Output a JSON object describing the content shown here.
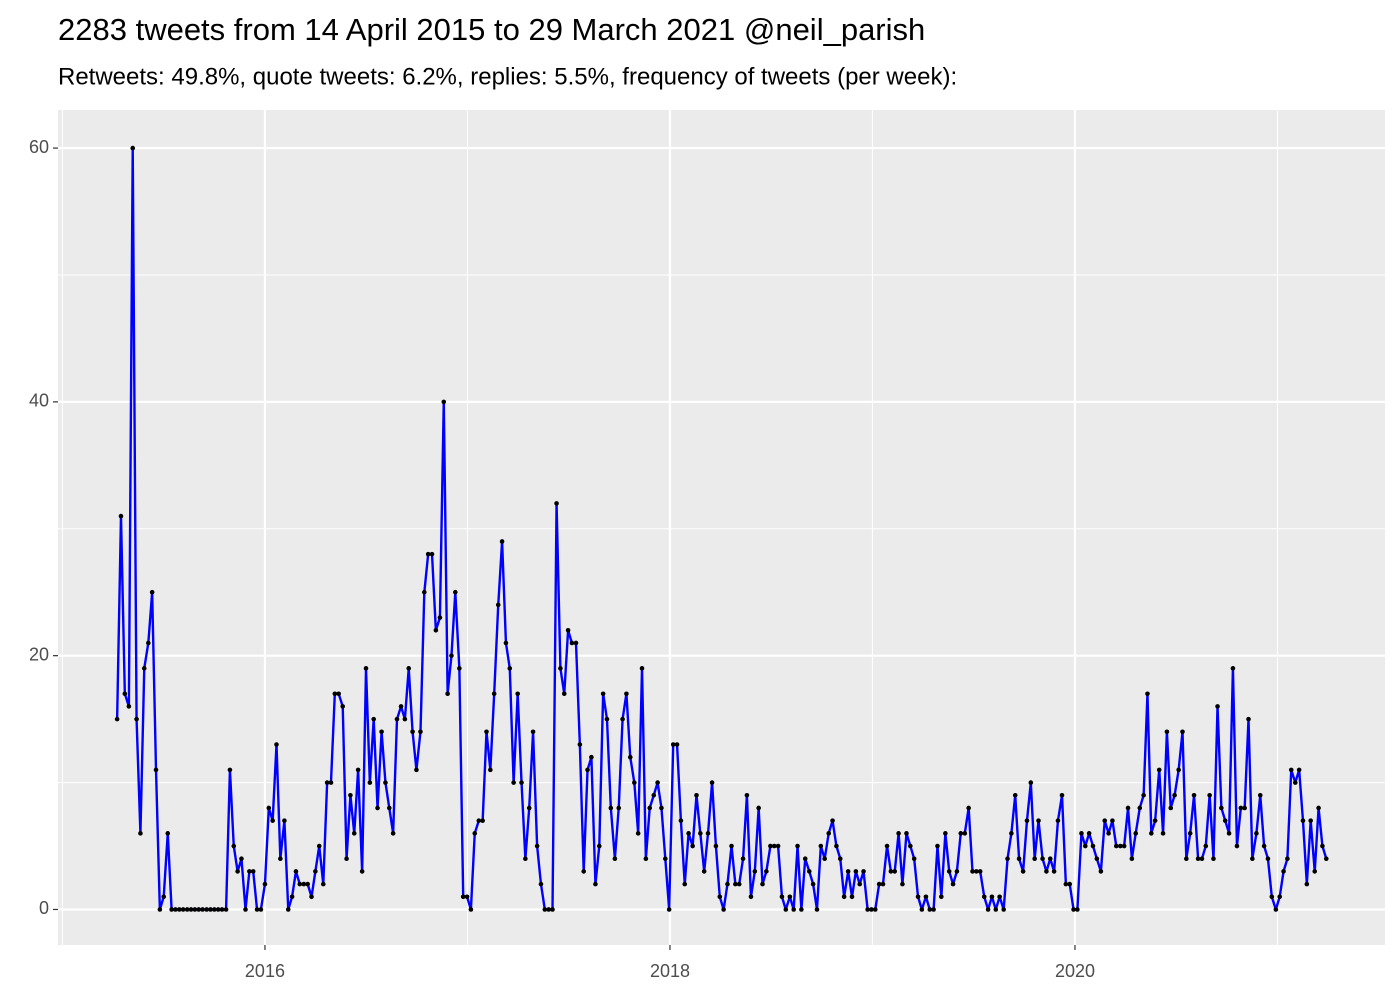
{
  "chart_data": {
    "type": "line",
    "title": "2283 tweets from 14 April 2015 to 29 March 2021 @neil_parish",
    "subtitle": "Retweets: 49.8%, quote tweets: 6.2%, replies: 5.5%, frequency of tweets (per week):",
    "color": "#0000ff",
    "point_color": "#000000",
    "xlim": [
      2014.978,
      2021.531
    ],
    "xticks": [
      2016,
      2018,
      2020
    ],
    "xminor": [
      2015,
      2017,
      2019,
      2021
    ],
    "ylim": [
      -2.8,
      63
    ],
    "yticks": [
      0,
      20,
      40,
      60
    ],
    "yminor": [
      10,
      30,
      50
    ],
    "grid": true,
    "x": [
      2015.27,
      2015.289,
      2015.308,
      2015.328,
      2015.347,
      2015.366,
      2015.385,
      2015.404,
      2015.424,
      2015.443,
      2015.462,
      2015.481,
      2015.5,
      2015.52,
      2015.539,
      2015.558,
      2015.577,
      2015.596,
      2015.616,
      2015.635,
      2015.654,
      2015.673,
      2015.692,
      2015.712,
      2015.731,
      2015.75,
      2015.769,
      2015.788,
      2015.808,
      2015.827,
      2015.846,
      2015.865,
      2015.884,
      2015.904,
      2015.923,
      2015.942,
      2015.961,
      2015.98,
      2016.0,
      2016.019,
      2016.038,
      2016.057,
      2016.076,
      2016.096,
      2016.115,
      2016.134,
      2016.153,
      2016.172,
      2016.192,
      2016.211,
      2016.23,
      2016.249,
      2016.268,
      2016.288,
      2016.307,
      2016.326,
      2016.345,
      2016.364,
      2016.384,
      2016.403,
      2016.422,
      2016.441,
      2016.46,
      2016.48,
      2016.499,
      2016.518,
      2016.537,
      2016.556,
      2016.576,
      2016.595,
      2016.614,
      2016.633,
      2016.652,
      2016.672,
      2016.691,
      2016.71,
      2016.729,
      2016.748,
      2016.768,
      2016.787,
      2016.806,
      2016.825,
      2016.844,
      2016.864,
      2016.883,
      2016.902,
      2016.921,
      2016.94,
      2016.96,
      2016.979,
      2016.998,
      2017.017,
      2017.036,
      2017.056,
      2017.075,
      2017.094,
      2017.113,
      2017.132,
      2017.152,
      2017.171,
      2017.19,
      2017.209,
      2017.228,
      2017.248,
      2017.267,
      2017.286,
      2017.305,
      2017.324,
      2017.344,
      2017.363,
      2017.382,
      2017.401,
      2017.42,
      2017.44,
      2017.459,
      2017.478,
      2017.497,
      2017.516,
      2017.536,
      2017.555,
      2017.574,
      2017.593,
      2017.612,
      2017.632,
      2017.651,
      2017.67,
      2017.689,
      2017.708,
      2017.728,
      2017.747,
      2017.766,
      2017.785,
      2017.804,
      2017.824,
      2017.843,
      2017.862,
      2017.881,
      2017.9,
      2017.92,
      2017.939,
      2017.958,
      2017.977,
      2017.996,
      2018.016,
      2018.035,
      2018.054,
      2018.073,
      2018.092,
      2018.112,
      2018.131,
      2018.15,
      2018.169,
      2018.188,
      2018.208,
      2018.227,
      2018.246,
      2018.265,
      2018.284,
      2018.304,
      2018.323,
      2018.342,
      2018.361,
      2018.38,
      2018.4,
      2018.419,
      2018.438,
      2018.457,
      2018.476,
      2018.496,
      2018.515,
      2018.534,
      2018.553,
      2018.572,
      2018.592,
      2018.611,
      2018.63,
      2018.649,
      2018.668,
      2018.688,
      2018.707,
      2018.726,
      2018.745,
      2018.764,
      2018.784,
      2018.803,
      2018.822,
      2018.841,
      2018.86,
      2018.88,
      2018.899,
      2018.918,
      2018.937,
      2018.956,
      2018.976,
      2018.995,
      2019.014,
      2019.033,
      2019.052,
      2019.072,
      2019.091,
      2019.11,
      2019.129,
      2019.148,
      2019.168,
      2019.187,
      2019.206,
      2019.225,
      2019.244,
      2019.264,
      2019.283,
      2019.302,
      2019.321,
      2019.34,
      2019.36,
      2019.379,
      2019.398,
      2019.417,
      2019.436,
      2019.456,
      2019.475,
      2019.494,
      2019.513,
      2019.532,
      2019.552,
      2019.571,
      2019.59,
      2019.609,
      2019.628,
      2019.648,
      2019.667,
      2019.686,
      2019.705,
      2019.724,
      2019.744,
      2019.763,
      2019.782,
      2019.801,
      2019.82,
      2019.84,
      2019.859,
      2019.878,
      2019.897,
      2019.916,
      2019.936,
      2019.955,
      2019.974,
      2019.993,
      2020.012,
      2020.032,
      2020.051,
      2020.07,
      2020.089,
      2020.108,
      2020.128,
      2020.147,
      2020.166,
      2020.185,
      2020.204,
      2020.224,
      2020.243,
      2020.262,
      2020.281,
      2020.3,
      2020.32,
      2020.339,
      2020.358,
      2020.377,
      2020.396,
      2020.416,
      2020.435,
      2020.454,
      2020.473,
      2020.492,
      2020.512,
      2020.531,
      2020.55,
      2020.569,
      2020.588,
      2020.608,
      2020.627,
      2020.646,
      2020.665,
      2020.684,
      2020.704,
      2020.723,
      2020.742,
      2020.761,
      2020.78,
      2020.8,
      2020.819,
      2020.838,
      2020.857,
      2020.876,
      2020.896,
      2020.915,
      2020.934,
      2020.953,
      2020.972,
      2020.992,
      2021.011,
      2021.03,
      2021.049,
      2021.068,
      2021.088,
      2021.107,
      2021.126,
      2021.145,
      2021.164,
      2021.184,
      2021.203,
      2021.222,
      2021.241
    ],
    "values": [
      15,
      31,
      17,
      16,
      60,
      15,
      6,
      19,
      21,
      25,
      11,
      0,
      1,
      6,
      0,
      0,
      0,
      0,
      0,
      0,
      0,
      0,
      0,
      0,
      0,
      0,
      0,
      0,
      0,
      11,
      5,
      3,
      4,
      0,
      3,
      3,
      0,
      0,
      2,
      8,
      7,
      13,
      4,
      7,
      0,
      1,
      3,
      2,
      2,
      2,
      1,
      3,
      5,
      2,
      10,
      10,
      17,
      17,
      16,
      4,
      9,
      6,
      11,
      3,
      19,
      10,
      15,
      8,
      14,
      10,
      8,
      6,
      15,
      16,
      15,
      19,
      14,
      11,
      14,
      25,
      28,
      28,
      22,
      23,
      40,
      17,
      20,
      25,
      19,
      1,
      1,
      0,
      6,
      7,
      7,
      14,
      11,
      17,
      24,
      29,
      21,
      19,
      10,
      17,
      10,
      4,
      8,
      14,
      5,
      2,
      0,
      0,
      0,
      32,
      19,
      17,
      22,
      21,
      21,
      13,
      3,
      11,
      12,
      2,
      5,
      17,
      15,
      8,
      4,
      8,
      15,
      17,
      12,
      10,
      6,
      19,
      4,
      8,
      9,
      10,
      8,
      4,
      0,
      13,
      13,
      7,
      2,
      6,
      5,
      9,
      6,
      3,
      6,
      10,
      5,
      1,
      0,
      2,
      5,
      2,
      2,
      4,
      9,
      1,
      3,
      8,
      2,
      3,
      5,
      5,
      5,
      1,
      0,
      1,
      0,
      5,
      0,
      4,
      3,
      2,
      0,
      5,
      4,
      6,
      7,
      5,
      4,
      1,
      3,
      1,
      3,
      2,
      3,
      0,
      0,
      0,
      2,
      2,
      5,
      3,
      3,
      6,
      2,
      6,
      5,
      4,
      1,
      0,
      1,
      0,
      0,
      5,
      1,
      6,
      3,
      2,
      3,
      6,
      6,
      8,
      3,
      3,
      3,
      1,
      0,
      1,
      0,
      1,
      0,
      4,
      6,
      9,
      4,
      3,
      7,
      10,
      4,
      7,
      4,
      3,
      4,
      3,
      7,
      9,
      2,
      2,
      0,
      0,
      6,
      5,
      6,
      5,
      4,
      3,
      7,
      6,
      7,
      5,
      5,
      5,
      8,
      4,
      6,
      8,
      9,
      17,
      6,
      7,
      11,
      6,
      14,
      8,
      9,
      11,
      14,
      4,
      6,
      9,
      4,
      4,
      5,
      9,
      4,
      16,
      8,
      7,
      6,
      19,
      5,
      8,
      8,
      15,
      4,
      6,
      9,
      5,
      4,
      1,
      0,
      1,
      3,
      4,
      11,
      10,
      11,
      7,
      2,
      7,
      3,
      8,
      5,
      4
    ]
  }
}
